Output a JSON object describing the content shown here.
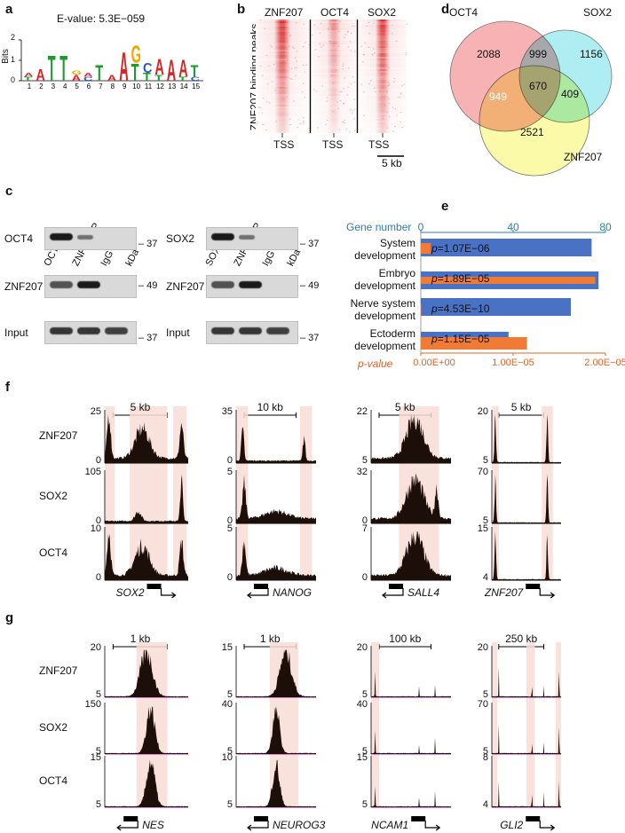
{
  "panel_a": {
    "label": "a",
    "evalue": "E-value: 5.3E−059",
    "ylabel": "Bits",
    "yticks": [
      "2",
      "1",
      "0"
    ],
    "positions": [
      "1",
      "2",
      "3",
      "4",
      "5",
      "6",
      "7",
      "8",
      "9",
      "10",
      "11",
      "12",
      "13",
      "14",
      "15"
    ],
    "letters": [
      [
        {
          "b": "T",
          "h": 0.2
        },
        {
          "b": "A",
          "h": 0.2
        }
      ],
      [
        {
          "b": "A",
          "h": 0.6
        }
      ],
      [
        {
          "b": "T",
          "h": 1.3
        }
      ],
      [
        {
          "b": "T",
          "h": 1.3
        }
      ],
      [
        {
          "b": "A",
          "h": 0.3
        },
        {
          "b": "G",
          "h": 0.2
        }
      ],
      [
        {
          "b": "C",
          "h": 0.2
        },
        {
          "b": "A",
          "h": 0.2
        }
      ],
      [
        {
          "b": "T",
          "h": 0.8
        }
      ],
      [
        {
          "b": "A",
          "h": 0.3
        }
      ],
      [
        {
          "b": "A",
          "h": 1.5
        }
      ],
      [
        {
          "b": "T",
          "h": 0.9
        },
        {
          "b": "G",
          "h": 0.9
        }
      ],
      [
        {
          "b": "T",
          "h": 0.4
        },
        {
          "b": "C",
          "h": 0.5
        }
      ],
      [
        {
          "b": "T",
          "h": 0.3
        },
        {
          "b": "A",
          "h": 0.8
        }
      ],
      [
        {
          "b": "A",
          "h": 1.1
        }
      ],
      [
        {
          "b": "T",
          "h": 0.2
        },
        {
          "b": "A",
          "h": 0.9
        }
      ],
      [
        {
          "b": "C",
          "h": 0.2
        },
        {
          "b": "T",
          "h": 0.6
        }
      ]
    ],
    "colors": {
      "A": "#d62728",
      "C": "#2c56c9",
      "G": "#f0a500",
      "T": "#1a9a2f"
    }
  },
  "panel_b": {
    "label": "b",
    "columns": [
      "ZNF207",
      "OCT4",
      "SOX2"
    ],
    "ylabel": "ZNF207 binding peaks",
    "xlabels": [
      "TSS",
      "TSS",
      "TSS"
    ],
    "scale": "5 kb"
  },
  "panel_c": {
    "label": "c",
    "left": {
      "lanes": [
        "OCT4 IP",
        "ZNF207 IP",
        "IgG IP",
        "kDa"
      ],
      "rows": [
        {
          "name": "OCT4",
          "kda": "37"
        },
        {
          "name": "ZNF207",
          "kda": "49"
        },
        {
          "name": "Input",
          "kda": "37"
        }
      ]
    },
    "right": {
      "lanes": [
        "SOX2 IP",
        "ZNF207 IP",
        "IgG IP",
        "kDa"
      ],
      "rows": [
        {
          "name": "SOX2",
          "kda": "37"
        },
        {
          "name": "ZNF207",
          "kda": "49"
        },
        {
          "name": "Input",
          "kda": "37"
        }
      ]
    }
  },
  "panel_d": {
    "label": "d",
    "sets": [
      "OCT4",
      "SOX2",
      "ZNF207"
    ],
    "counts": {
      "oct4_only": "2088",
      "sox2_only": "1156",
      "znf207_only": "2521",
      "oct4_sox2": "999",
      "oct4_znf207": "949",
      "sox2_znf207": "409",
      "all": "670"
    },
    "colors": {
      "oct4": "#f7b3b3",
      "sox2": "#aeeef2",
      "znf207": "#fafaa8",
      "oct4_sox2": "#b6f0a3",
      "oct4_znf207": "#5858d6",
      "sox2_znf207": "#b8b422",
      "all": "#a6a6a6"
    }
  },
  "chart_data": {
    "type": "bar",
    "label": "e",
    "categories": [
      [
        "System",
        "development"
      ],
      [
        "Embryo",
        "development"
      ],
      [
        "Nerve system",
        "development"
      ],
      [
        "Ectoderm",
        "development"
      ]
    ],
    "series": [
      {
        "name": "Gene number",
        "values": [
          74,
          77,
          65,
          38
        ],
        "color": "#4a72c4"
      },
      {
        "name": "p-value",
        "values": [
          1.07e-06,
          1.89e-05,
          4.53e-10,
          1.15e-05
        ],
        "color": "#ef7b35"
      }
    ],
    "top_axis": {
      "title": "Gene number",
      "ticks": [
        "0",
        "40",
        "80"
      ],
      "range": [
        0,
        80
      ],
      "color": "#2f7ca8"
    },
    "bottom_axis": {
      "title": "p-value",
      "ticks": [
        "0.00E+00",
        "1.00E−05",
        "2.00E−05"
      ],
      "range": [
        0,
        2e-05
      ],
      "color": "#e0642a"
    },
    "bar_labels": [
      "p=1.07E−06",
      "p=1.89E−05",
      "p=4.53E−10",
      "p=1.15E−05"
    ]
  },
  "panel_f": {
    "label": "f",
    "tracks": [
      "ZNF207",
      "SOX2",
      "OCT4"
    ],
    "loci": [
      {
        "gene": "SOX2",
        "scale": "5 kb",
        "ticks": [
          [
            "25",
            "0"
          ],
          [
            "105",
            "0"
          ],
          [
            "10",
            "0"
          ]
        ],
        "dir": "right"
      },
      {
        "gene": "NANOG",
        "scale": "10 kb",
        "ticks": [
          [
            "35",
            "0"
          ],
          [
            "5",
            "0"
          ],
          [
            "5",
            "0"
          ]
        ],
        "dir": "left"
      },
      {
        "gene": "SALL4",
        "scale": "5 kb",
        "ticks": [
          [
            "22",
            "5"
          ],
          [
            "32",
            "0"
          ],
          [
            "7",
            "0"
          ]
        ],
        "dir": "left"
      },
      {
        "gene": "ZNF207",
        "scale": "5 kb",
        "ticks": [
          [
            "20",
            "5"
          ],
          [
            "70",
            "5"
          ],
          [
            "15",
            "4"
          ]
        ],
        "dir": "right"
      }
    ]
  },
  "panel_g": {
    "label": "g",
    "tracks": [
      "ZNF207",
      "SOX2",
      "OCT4"
    ],
    "loci": [
      {
        "gene": "NES",
        "scale": "1 kb",
        "ticks": [
          [
            "20",
            "5"
          ],
          [
            "150",
            "5"
          ],
          [
            "15",
            "5"
          ]
        ],
        "dir": "left"
      },
      {
        "gene": "NEUROG3",
        "scale": "1 kb",
        "ticks": [
          [
            "15",
            "5"
          ],
          [
            "40",
            "5"
          ],
          [
            "10",
            "5"
          ]
        ],
        "dir": "left"
      },
      {
        "gene": "NCAM1",
        "scale": "100 kb",
        "ticks": [
          [
            "20",
            "5"
          ],
          [
            "40",
            "5"
          ],
          [
            "15",
            "5"
          ]
        ],
        "dir": "right"
      },
      {
        "gene": "GLI2",
        "scale": "250 kb",
        "ticks": [
          [
            "20",
            "5"
          ],
          [
            "70",
            "5"
          ],
          [
            "8",
            "4"
          ]
        ],
        "dir": "right"
      }
    ]
  }
}
